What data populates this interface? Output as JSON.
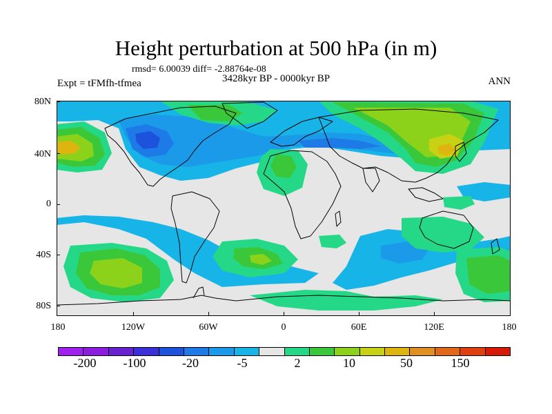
{
  "title": "Height perturbation at 500 hPa (in m)",
  "rmsd_line": "rmsd= 6.00039 diff= -2.88764e-08",
  "experiment": "Expt = tFMfh-tfmea",
  "period": "3428kyr BP - 0000kyr BP",
  "season": "ANN",
  "y_labels": [
    "80N",
    "40N",
    "0",
    "40S",
    "80S"
  ],
  "x_labels": [
    "180",
    "120W",
    "60W",
    "0",
    "60E",
    "120E",
    "180"
  ],
  "colorbar": {
    "colors": [
      "#a020f0",
      "#8c1ce0",
      "#6a21d0",
      "#3a2fd8",
      "#1c52dc",
      "#1e7ae6",
      "#1a9ae8",
      "#17b4e8",
      "#e6e6e6",
      "#25d888",
      "#3ac83a",
      "#8cd21a",
      "#c8d214",
      "#ddb410",
      "#e09020",
      "#e06818",
      "#e04010",
      "#d81808"
    ],
    "labels": [
      "-200",
      "-100",
      "-20",
      "-5",
      "2",
      "10",
      "50",
      "150"
    ]
  },
  "colors": {
    "level_neg_5": "#17b4e8",
    "level_neg_20": "#1a9ae8",
    "level_neg_50": "#1e7ae6",
    "level_neg_100": "#1c52dc",
    "level_pos_2": "#25d888",
    "level_pos_5": "#3ac83a",
    "level_pos_10": "#8cd21a",
    "level_pos_20": "#c8d214",
    "level_pos_50": "#ddb410",
    "neutral": "#e6e6e6"
  }
}
